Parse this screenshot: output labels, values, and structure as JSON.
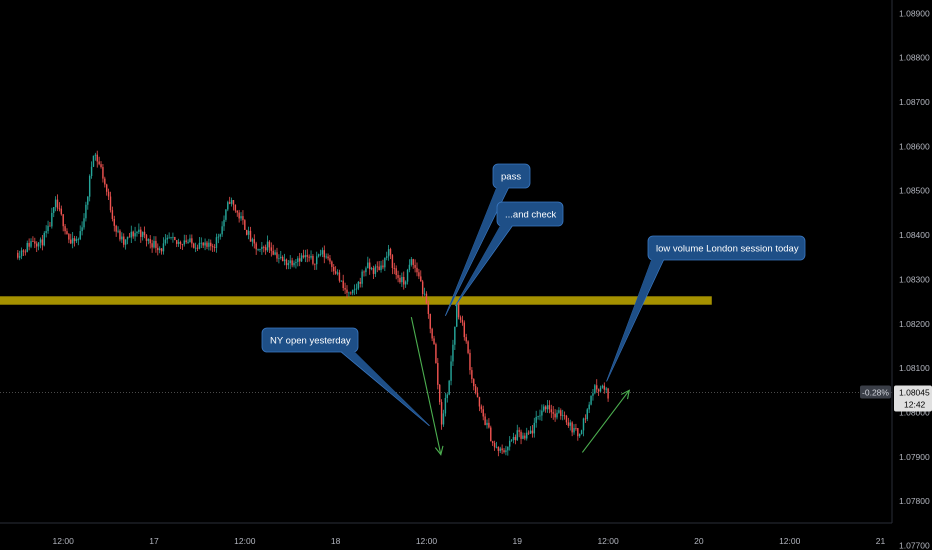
{
  "colors": {
    "background": "#000000",
    "up": "#26a69a",
    "down": "#ef5350",
    "zone": "#c9b100",
    "callout_fill": "#1e4f87",
    "callout_stroke": "#3a78c2",
    "trend_arrow": "#4caf50",
    "axis_text": "#b2b5be",
    "price_tag": "#e0e0e0"
  },
  "chart_data": {
    "type": "candlestick",
    "instrument_quote_current": "1.08045",
    "change_pct": "-0.28%",
    "countdown": "12:42",
    "y_ticks": [
      "1.08900",
      "1.08800",
      "1.08700",
      "1.08600",
      "1.08500",
      "1.08400",
      "1.08300",
      "1.08200",
      "1.08100",
      "1.08000",
      "1.07900",
      "1.07800",
      "1.07700"
    ],
    "ylim": [
      1.0769,
      1.0893
    ],
    "x_ticks": [
      {
        "label": "12:00",
        "t": 6
      },
      {
        "label": "17",
        "t": 18
      },
      {
        "label": "12:00",
        "t": 30
      },
      {
        "label": "18",
        "t": 42
      },
      {
        "label": "12:00",
        "t": 54
      },
      {
        "label": "19",
        "t": 66
      },
      {
        "label": "12:00",
        "t": 78
      },
      {
        "label": "20",
        "t": 90
      },
      {
        "label": "12:00",
        "t": 102
      },
      {
        "label": "21",
        "t": 114
      }
    ],
    "xlim": [
      -2.35,
      120.8
    ],
    "zone": {
      "low": 1.08243,
      "high": 1.08262,
      "t_start": -2.35,
      "t_end": 91.7
    },
    "price_path": [
      [
        0,
        1.0836
      ],
      [
        1,
        1.0837
      ],
      [
        2,
        1.0839
      ],
      [
        3,
        1.0838
      ],
      [
        4,
        1.0841
      ],
      [
        5,
        1.0847
      ],
      [
        6,
        1.0843
      ],
      [
        7,
        1.0838
      ],
      [
        8,
        1.0839
      ],
      [
        9,
        1.0846
      ],
      [
        10,
        1.0859
      ],
      [
        11,
        1.0855
      ],
      [
        12,
        1.0848
      ],
      [
        13,
        1.0841
      ],
      [
        14,
        1.0838
      ],
      [
        15,
        1.084
      ],
      [
        16,
        1.0841
      ],
      [
        17,
        1.0839
      ],
      [
        18,
        1.0838
      ],
      [
        19,
        1.0837
      ],
      [
        20,
        1.0839
      ],
      [
        21,
        1.0838
      ],
      [
        22,
        1.0839
      ],
      [
        23,
        1.0838
      ],
      [
        24,
        1.0838
      ],
      [
        25,
        1.0837
      ],
      [
        26,
        1.0838
      ],
      [
        27,
        1.0842
      ],
      [
        28,
        1.0848
      ],
      [
        29,
        1.0845
      ],
      [
        30,
        1.0842
      ],
      [
        31,
        1.0838
      ],
      [
        32,
        1.0836
      ],
      [
        33,
        1.0838
      ],
      [
        34,
        1.0836
      ],
      [
        35,
        1.0834
      ],
      [
        36,
        1.0834
      ],
      [
        37,
        1.0835
      ],
      [
        38,
        1.0835
      ],
      [
        39,
        1.0834
      ],
      [
        40,
        1.0836
      ],
      [
        41,
        1.0835
      ],
      [
        42,
        1.0832
      ],
      [
        43,
        1.0828
      ],
      [
        44,
        1.0826
      ],
      [
        45,
        1.0829
      ],
      [
        46,
        1.0833
      ],
      [
        47,
        1.0832
      ],
      [
        48,
        1.0833
      ],
      [
        49,
        1.0836
      ],
      [
        50,
        1.0831
      ],
      [
        51,
        1.0829
      ],
      [
        52,
        1.0834
      ],
      [
        53,
        1.0831
      ],
      [
        54,
        1.0824
      ],
      [
        55,
        1.0815
      ],
      [
        56,
        1.0798
      ],
      [
        57,
        1.0807
      ],
      [
        58,
        1.0824
      ],
      [
        59,
        1.0818
      ],
      [
        60,
        1.0808
      ],
      [
        61,
        1.0801
      ],
      [
        62,
        1.0797
      ],
      [
        63,
        1.0792
      ],
      [
        64,
        1.0791
      ],
      [
        65,
        1.0793
      ],
      [
        66,
        1.0795
      ],
      [
        67,
        1.0794
      ],
      [
        68,
        1.0796
      ],
      [
        69,
        1.08
      ],
      [
        70,
        1.0802
      ],
      [
        71,
        1.0799
      ],
      [
        72,
        1.08
      ],
      [
        73,
        1.0797
      ],
      [
        74,
        1.0795
      ],
      [
        75,
        1.0799
      ],
      [
        76,
        1.0805
      ],
      [
        77,
        1.0806
      ],
      [
        78,
        1.0804
      ]
    ],
    "annotations": [
      {
        "text": "pass",
        "anchor_t": 56.5,
        "anchor_p": 1.08218
      },
      {
        "text": "...and check",
        "anchor_t": 57.8,
        "anchor_p": 1.0824
      },
      {
        "text": "NY open yesterday",
        "anchor_t": 54.4,
        "anchor_p": 1.0797
      },
      {
        "text": "low volume London session today",
        "anchor_t": 77.8,
        "anchor_p": 1.0807
      }
    ],
    "trend_arrows": [
      {
        "from_t": 52.0,
        "from_p": 1.08215,
        "to_t": 55.9,
        "to_p": 1.07905
      },
      {
        "from_t": 74.6,
        "from_p": 1.0791,
        "to_t": 80.8,
        "to_p": 1.0805
      }
    ]
  }
}
